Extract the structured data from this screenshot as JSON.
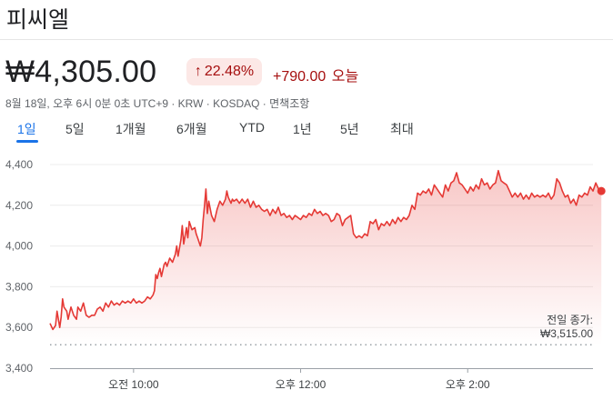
{
  "header": {
    "title": "피씨엘",
    "price": "₩4,305.00",
    "percent_change": "22.48%",
    "percent_arrow": "↑",
    "absolute_change": "+790.00",
    "today_label": "오늘",
    "meta": "8월 18일, 오후 6시 0분 0초 UTC+9 · KRW · KOSDAQ · 면책조항"
  },
  "range_tabs": [
    "1일",
    "5일",
    "1개월",
    "6개월",
    "YTD",
    "1년",
    "5년",
    "최대"
  ],
  "active_tab": "1일",
  "colors": {
    "line": "#e53935",
    "accent": "#1a73e8",
    "negative_text": "#a50e0e",
    "badge_bg": "#fce8e6"
  },
  "chart_data": {
    "type": "line",
    "y_ticks": [
      "4,400",
      "4,200",
      "4,000",
      "3,800",
      "3,600",
      "3,400"
    ],
    "ylim": [
      3400,
      4400
    ],
    "x_ticks": [
      "오전 10:00",
      "오후 12:00",
      "오후 2:00"
    ],
    "x_tick_values": [
      60,
      180,
      300
    ],
    "x_range": [
      0,
      390
    ],
    "previous_close_label": "전일 종가:",
    "previous_close_value": "₩3,515.00",
    "previous_close": 3515,
    "grid": true,
    "series": [
      {
        "values": [
          [
            0,
            3620
          ],
          [
            2,
            3590
          ],
          [
            4,
            3610
          ],
          [
            5,
            3680
          ],
          [
            7,
            3600
          ],
          [
            8,
            3650
          ],
          [
            9,
            3740
          ],
          [
            10,
            3700
          ],
          [
            12,
            3680
          ],
          [
            13,
            3640
          ],
          [
            15,
            3700
          ],
          [
            17,
            3660
          ],
          [
            19,
            3640
          ],
          [
            20,
            3700
          ],
          [
            22,
            3680
          ],
          [
            24,
            3720
          ],
          [
            26,
            3660
          ],
          [
            28,
            3650
          ],
          [
            30,
            3660
          ],
          [
            32,
            3660
          ],
          [
            34,
            3690
          ],
          [
            36,
            3700
          ],
          [
            38,
            3680
          ],
          [
            40,
            3720
          ],
          [
            42,
            3700
          ],
          [
            44,
            3730
          ],
          [
            46,
            3710
          ],
          [
            48,
            3720
          ],
          [
            50,
            3710
          ],
          [
            52,
            3730
          ],
          [
            54,
            3720
          ],
          [
            56,
            3730
          ],
          [
            58,
            3720
          ],
          [
            60,
            3740
          ],
          [
            62,
            3720
          ],
          [
            64,
            3730
          ],
          [
            66,
            3720
          ],
          [
            68,
            3730
          ],
          [
            70,
            3750
          ],
          [
            72,
            3740
          ],
          [
            74,
            3760
          ],
          [
            75,
            3780
          ],
          [
            76,
            3860
          ],
          [
            77,
            3840
          ],
          [
            78,
            3870
          ],
          [
            79,
            3890
          ],
          [
            80,
            3850
          ],
          [
            81,
            3880
          ],
          [
            82,
            3910
          ],
          [
            83,
            3920
          ],
          [
            84,
            3900
          ],
          [
            86,
            3940
          ],
          [
            88,
            3920
          ],
          [
            90,
            3960
          ],
          [
            91,
            4000
          ],
          [
            92,
            3950
          ],
          [
            94,
            4030
          ],
          [
            95,
            4100
          ],
          [
            96,
            4010
          ],
          [
            98,
            4090
          ],
          [
            99,
            4040
          ],
          [
            100,
            4120
          ],
          [
            101,
            4100
          ],
          [
            102,
            4080
          ],
          [
            104,
            4090
          ],
          [
            105,
            4060
          ],
          [
            106,
            4040
          ],
          [
            107,
            4020
          ],
          [
            108,
            4000
          ],
          [
            109,
            4040
          ],
          [
            110,
            4130
          ],
          [
            111,
            4200
          ],
          [
            112,
            4280
          ],
          [
            113,
            4160
          ],
          [
            114,
            4220
          ],
          [
            116,
            4150
          ],
          [
            118,
            4120
          ],
          [
            120,
            4180
          ],
          [
            122,
            4220
          ],
          [
            124,
            4200
          ],
          [
            126,
            4230
          ],
          [
            127,
            4270
          ],
          [
            128,
            4240
          ],
          [
            130,
            4210
          ],
          [
            131,
            4230
          ],
          [
            132,
            4220
          ],
          [
            134,
            4230
          ],
          [
            136,
            4210
          ],
          [
            138,
            4230
          ],
          [
            140,
            4210
          ],
          [
            142,
            4230
          ],
          [
            144,
            4190
          ],
          [
            146,
            4220
          ],
          [
            148,
            4190
          ],
          [
            150,
            4200
          ],
          [
            152,
            4180
          ],
          [
            154,
            4170
          ],
          [
            156,
            4180
          ],
          [
            158,
            4150
          ],
          [
            160,
            4180
          ],
          [
            162,
            4160
          ],
          [
            164,
            4190
          ],
          [
            166,
            4150
          ],
          [
            168,
            4160
          ],
          [
            170,
            4140
          ],
          [
            172,
            4150
          ],
          [
            174,
            4130
          ],
          [
            176,
            4150
          ],
          [
            178,
            4140
          ],
          [
            180,
            4130
          ],
          [
            182,
            4150
          ],
          [
            184,
            4140
          ],
          [
            186,
            4160
          ],
          [
            188,
            4150
          ],
          [
            190,
            4180
          ],
          [
            192,
            4160
          ],
          [
            194,
            4170
          ],
          [
            196,
            4150
          ],
          [
            198,
            4160
          ],
          [
            200,
            4150
          ],
          [
            202,
            4120
          ],
          [
            204,
            4130
          ],
          [
            206,
            4160
          ],
          [
            208,
            4150
          ],
          [
            210,
            4100
          ],
          [
            212,
            4130
          ],
          [
            214,
            4140
          ],
          [
            216,
            4150
          ],
          [
            218,
            4060
          ],
          [
            220,
            4040
          ],
          [
            222,
            4050
          ],
          [
            224,
            4040
          ],
          [
            226,
            4060
          ],
          [
            228,
            4050
          ],
          [
            230,
            4120
          ],
          [
            232,
            4110
          ],
          [
            234,
            4130
          ],
          [
            236,
            4080
          ],
          [
            238,
            4110
          ],
          [
            240,
            4100
          ],
          [
            242,
            4120
          ],
          [
            244,
            4100
          ],
          [
            246,
            4130
          ],
          [
            248,
            4110
          ],
          [
            250,
            4140
          ],
          [
            252,
            4120
          ],
          [
            254,
            4140
          ],
          [
            256,
            4130
          ],
          [
            258,
            4150
          ],
          [
            260,
            4200
          ],
          [
            262,
            4180
          ],
          [
            264,
            4260
          ],
          [
            266,
            4250
          ],
          [
            268,
            4270
          ],
          [
            270,
            4260
          ],
          [
            272,
            4280
          ],
          [
            274,
            4250
          ],
          [
            276,
            4300
          ],
          [
            278,
            4280
          ],
          [
            280,
            4260
          ],
          [
            282,
            4240
          ],
          [
            284,
            4300
          ],
          [
            286,
            4270
          ],
          [
            288,
            4310
          ],
          [
            290,
            4320
          ],
          [
            292,
            4360
          ],
          [
            294,
            4310
          ],
          [
            296,
            4300
          ],
          [
            298,
            4280
          ],
          [
            300,
            4260
          ],
          [
            302,
            4290
          ],
          [
            304,
            4270
          ],
          [
            306,
            4300
          ],
          [
            308,
            4280
          ],
          [
            310,
            4330
          ],
          [
            312,
            4300
          ],
          [
            314,
            4310
          ],
          [
            316,
            4280
          ],
          [
            318,
            4300
          ],
          [
            320,
            4310
          ],
          [
            322,
            4370
          ],
          [
            324,
            4320
          ],
          [
            326,
            4310
          ],
          [
            328,
            4300
          ],
          [
            330,
            4270
          ],
          [
            332,
            4240
          ],
          [
            334,
            4260
          ],
          [
            336,
            4240
          ],
          [
            338,
            4260
          ],
          [
            340,
            4230
          ],
          [
            342,
            4250
          ],
          [
            344,
            4230
          ],
          [
            346,
            4260
          ],
          [
            348,
            4240
          ],
          [
            350,
            4250
          ],
          [
            352,
            4240
          ],
          [
            354,
            4250
          ],
          [
            356,
            4240
          ],
          [
            358,
            4260
          ],
          [
            360,
            4230
          ],
          [
            362,
            4250
          ],
          [
            364,
            4330
          ],
          [
            366,
            4310
          ],
          [
            368,
            4270
          ],
          [
            370,
            4240
          ],
          [
            372,
            4250
          ],
          [
            374,
            4210
          ],
          [
            376,
            4230
          ],
          [
            378,
            4200
          ],
          [
            380,
            4250
          ],
          [
            382,
            4240
          ],
          [
            384,
            4260
          ],
          [
            386,
            4250
          ],
          [
            388,
            4290
          ],
          [
            390,
            4270
          ],
          [
            392,
            4310
          ],
          [
            394,
            4280
          ],
          [
            396,
            4270
          ]
        ]
      }
    ],
    "last_point": [
      396,
      4270
    ]
  }
}
